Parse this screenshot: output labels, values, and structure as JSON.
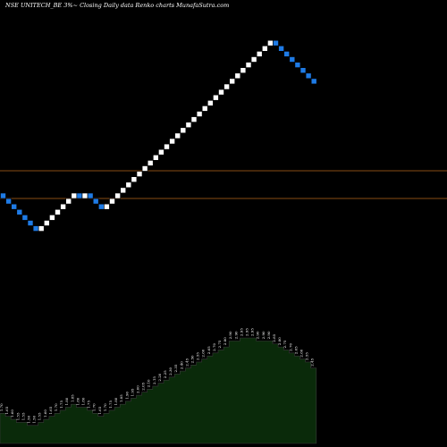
{
  "header": {
    "caption": "NSE UNITECH_BE 3%~  Closing Daily data  Renko  charts MunafaSutra.com"
  },
  "colors": {
    "background": "#000000",
    "up_brick": "#ffffff",
    "down_brick": "#1e7be6",
    "reference_line": "#b5651d",
    "volume_fill": "#0a2a0a",
    "volume_stroke": "#3a3a3a"
  },
  "chart_data": {
    "type": "renko",
    "brick_percent": 3,
    "reference_levels": [
      1.95,
      1.72
    ],
    "directions": [
      "down",
      "down",
      "down",
      "down",
      "down",
      "down",
      "down",
      "up",
      "up",
      "up",
      "up",
      "up",
      "up",
      "up",
      "down",
      "up",
      "down",
      "down",
      "down",
      "up",
      "up",
      "up",
      "up",
      "up",
      "up",
      "up",
      "up",
      "up",
      "up",
      "up",
      "up",
      "up",
      "up",
      "up",
      "up",
      "up",
      "up",
      "up",
      "up",
      "up",
      "up",
      "up",
      "up",
      "up",
      "up",
      "up",
      "up",
      "up",
      "up",
      "up",
      "down",
      "down",
      "down",
      "down",
      "down",
      "down",
      "down",
      "down"
    ],
    "close_values": [
      "1.70",
      "1.65",
      "1.60",
      "1.55",
      "1.55",
      "1.50",
      "1.50",
      "1.55",
      "1.60",
      "1.65",
      "1.70",
      "1.75",
      "1.80",
      "1.85",
      "1.80",
      "1.80",
      "1.75",
      "1.70",
      "1.65",
      "1.70",
      "1.75",
      "1.80",
      "1.85",
      "1.90",
      "1.95",
      "2.00",
      "2.05",
      "2.10",
      "2.15",
      "2.20",
      "2.25",
      "2.30",
      "2.35",
      "2.40",
      "2.45",
      "2.50",
      "2.55",
      "2.60",
      "2.65",
      "2.70",
      "2.75",
      "2.80",
      "2.90",
      "2.90",
      "2.95",
      "2.95",
      "2.95",
      "2.90",
      "2.90",
      "2.90",
      "2.85",
      "2.80",
      "2.75",
      "2.70",
      "2.65",
      "2.60",
      "2.55",
      "2.45"
    ]
  }
}
